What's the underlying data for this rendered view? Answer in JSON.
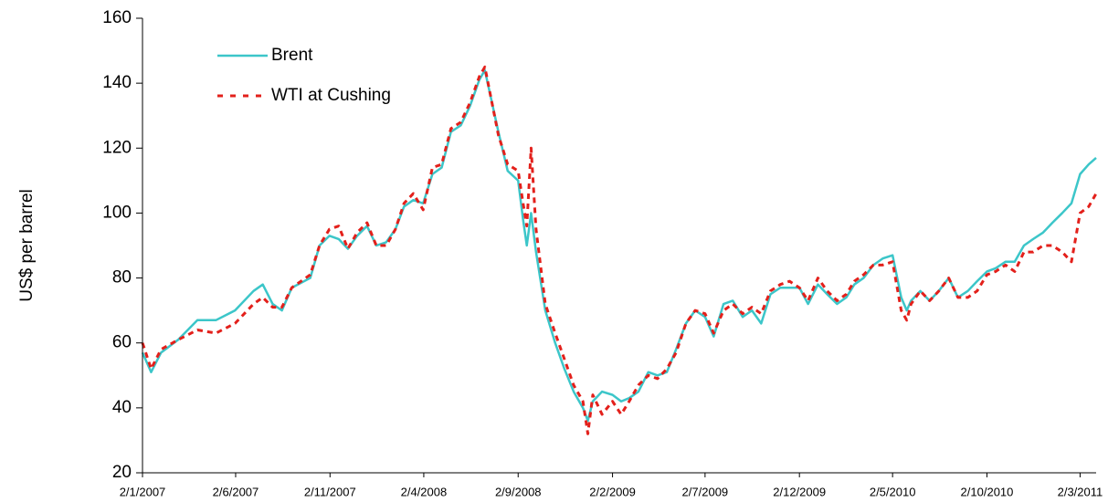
{
  "chart_data": {
    "type": "line",
    "ylabel": "US$ per barrel",
    "x": [
      "2/1/2007",
      "16/1/2007",
      "1/2/2007",
      "1/3/2007",
      "1/4/2007",
      "1/5/2007",
      "1/6/2007",
      "1/7/2007",
      "16/7/2007",
      "1/8/2007",
      "16/8/2007",
      "1/9/2007",
      "1/10/2007",
      "16/10/2007",
      "1/11/2007",
      "16/11/2007",
      "1/12/2007",
      "16/12/2007",
      "1/1/2008",
      "16/1/2008",
      "1/2/2008",
      "16/2/2008",
      "1/3/2008",
      "16/3/2008",
      "1/4/2008",
      "16/4/2008",
      "1/5/2008",
      "16/5/2008",
      "1/6/2008",
      "16/6/2008",
      "1/7/2008",
      "10/7/2008",
      "1/8/2008",
      "16/8/2008",
      "2/9/2008",
      "10/9/2008",
      "16/9/2008",
      "23/9/2008",
      "1/10/2008",
      "16/10/2008",
      "1/11/2008",
      "16/11/2008",
      "1/12/2008",
      "16/12/2008",
      "24/12/2008",
      "1/1/2009",
      "16/1/2009",
      "2/2/2009",
      "16/2/2009",
      "1/3/2009",
      "16/3/2009",
      "1/4/2009",
      "16/4/2009",
      "1/5/2009",
      "16/5/2009",
      "1/6/2009",
      "16/6/2009",
      "2/7/2009",
      "16/7/2009",
      "1/8/2009",
      "16/8/2009",
      "1/9/2009",
      "16/9/2009",
      "1/10/2009",
      "16/10/2009",
      "1/11/2009",
      "16/11/2009",
      "2/12/2009",
      "16/12/2009",
      "1/1/2010",
      "16/1/2010",
      "1/2/2010",
      "16/2/2010",
      "1/3/2010",
      "16/3/2010",
      "1/4/2010",
      "16/4/2010",
      "2/5/2010",
      "16/5/2010",
      "25/5/2010",
      "1/6/2010",
      "16/6/2010",
      "1/7/2010",
      "16/7/2010",
      "1/8/2010",
      "16/8/2010",
      "1/9/2010",
      "16/9/2010",
      "2/10/2010",
      "16/10/2010",
      "1/11/2010",
      "16/11/2010",
      "1/12/2010",
      "16/12/2010",
      "1/1/2011",
      "16/1/2011",
      "1/2/2011",
      "16/2/2011",
      "2/3/2011",
      "16/3/2011",
      "28/3/2011"
    ],
    "series": [
      {
        "name": "Brent",
        "color": "#3cc6c9",
        "dash": false,
        "values": [
          57,
          51,
          57,
          61,
          67,
          67,
          70,
          76,
          78,
          72,
          70,
          77,
          80,
          90,
          93,
          92,
          89,
          93,
          96,
          90,
          91,
          95,
          102,
          104,
          103,
          112,
          114,
          125,
          127,
          133,
          141,
          144,
          125,
          113,
          110,
          98,
          90,
          100,
          88,
          70,
          60,
          52,
          45,
          40,
          36,
          42,
          45,
          44,
          42,
          43,
          45,
          51,
          50,
          51,
          58,
          66,
          70,
          68,
          62,
          72,
          73,
          68,
          70,
          66,
          75,
          77,
          77,
          77,
          72,
          78,
          75,
          72,
          74,
          78,
          80,
          84,
          86,
          87,
          74,
          70,
          73,
          76,
          73,
          76,
          80,
          74,
          76,
          79,
          82,
          83,
          85,
          85,
          90,
          92,
          94,
          97,
          100,
          103,
          112,
          115,
          117
        ]
      },
      {
        "name": "WTI at Cushing",
        "color": "#e3201b",
        "dash": true,
        "values": [
          60,
          52,
          58,
          61,
          64,
          63,
          66,
          72,
          74,
          71,
          71,
          77,
          81,
          90,
          95,
          96,
          89,
          94,
          97,
          90,
          90,
          95,
          103,
          106,
          101,
          114,
          115,
          126,
          128,
          134,
          142,
          145,
          124,
          115,
          113,
          103,
          96,
          120,
          95,
          72,
          63,
          55,
          47,
          42,
          32,
          44,
          38,
          42,
          38,
          42,
          47,
          50,
          49,
          52,
          57,
          66,
          70,
          69,
          63,
          70,
          72,
          69,
          71,
          69,
          76,
          78,
          79,
          77,
          73,
          80,
          76,
          73,
          75,
          79,
          81,
          84,
          84,
          85,
          70,
          67,
          72,
          76,
          73,
          76,
          80,
          74,
          74,
          76,
          81,
          82,
          84,
          82,
          88,
          88,
          90,
          90,
          88,
          85,
          100,
          102,
          106
        ]
      }
    ],
    "xlim": [
      "2/1/2007",
      "28/3/2011"
    ],
    "xticks": [
      "2/1/2007",
      "2/6/2007",
      "2/11/2007",
      "2/4/2008",
      "2/9/2008",
      "2/2/2009",
      "2/7/2009",
      "2/12/2009",
      "2/5/2010",
      "2/10/2010",
      "2/3/2011"
    ],
    "ylim": [
      20,
      160
    ],
    "yticks": [
      20,
      40,
      60,
      80,
      100,
      120,
      140,
      160
    ],
    "grid": false,
    "legend": "upper left"
  }
}
